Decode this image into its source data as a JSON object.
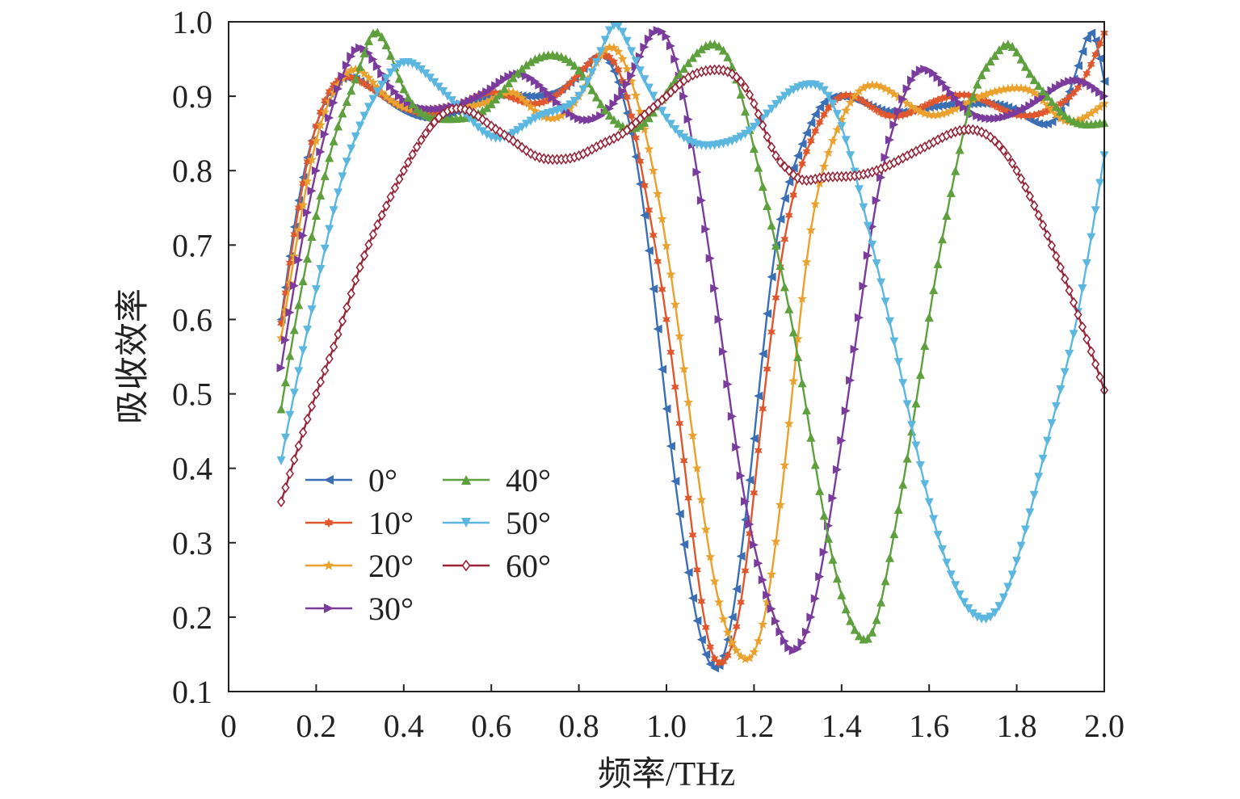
{
  "chart_data": {
    "type": "line",
    "xlabel": "频率/THz",
    "ylabel": "吸收效率",
    "xlim": [
      0,
      2.0
    ],
    "ylim": [
      0.1,
      1.0
    ],
    "xticks": [
      "0",
      "0.2",
      "0.4",
      "0.6",
      "0.8",
      "1.0",
      "1.2",
      "1.4",
      "1.6",
      "1.8",
      "2.0"
    ],
    "yticks": [
      "0.1",
      "0.2",
      "0.3",
      "0.4",
      "0.5",
      "0.6",
      "0.7",
      "0.8",
      "0.9",
      "1.0"
    ],
    "grid": false,
    "legend_position": "lower-left, two columns",
    "series": [
      {
        "name": "0°",
        "color": "#3a6fb5",
        "marker": "triangle-left",
        "points": [
          [
            0.12,
            0.6
          ],
          [
            0.16,
            0.76
          ],
          [
            0.2,
            0.86
          ],
          [
            0.25,
            0.92
          ],
          [
            0.3,
            0.92
          ],
          [
            0.35,
            0.9
          ],
          [
            0.4,
            0.88
          ],
          [
            0.5,
            0.875
          ],
          [
            0.6,
            0.9
          ],
          [
            0.7,
            0.9
          ],
          [
            0.8,
            0.93
          ],
          [
            0.85,
            0.955
          ],
          [
            0.9,
            0.9
          ],
          [
            0.95,
            0.74
          ],
          [
            1.0,
            0.48
          ],
          [
            1.05,
            0.26
          ],
          [
            1.09,
            0.15
          ],
          [
            1.12,
            0.135
          ],
          [
            1.15,
            0.2
          ],
          [
            1.2,
            0.44
          ],
          [
            1.25,
            0.7
          ],
          [
            1.3,
            0.82
          ],
          [
            1.35,
            0.885
          ],
          [
            1.4,
            0.9
          ],
          [
            1.5,
            0.88
          ],
          [
            1.6,
            0.885
          ],
          [
            1.7,
            0.89
          ],
          [
            1.8,
            0.88
          ],
          [
            1.9,
            0.88
          ],
          [
            1.95,
            0.96
          ],
          [
            1.97,
            0.985
          ],
          [
            2.0,
            0.92
          ]
        ]
      },
      {
        "name": "10°",
        "color": "#e0572d",
        "marker": "asterisk",
        "points": [
          [
            0.12,
            0.595
          ],
          [
            0.16,
            0.75
          ],
          [
            0.2,
            0.86
          ],
          [
            0.26,
            0.925
          ],
          [
            0.3,
            0.92
          ],
          [
            0.4,
            0.885
          ],
          [
            0.5,
            0.88
          ],
          [
            0.6,
            0.905
          ],
          [
            0.7,
            0.89
          ],
          [
            0.8,
            0.93
          ],
          [
            0.86,
            0.955
          ],
          [
            0.9,
            0.92
          ],
          [
            0.95,
            0.78
          ],
          [
            1.0,
            0.6
          ],
          [
            1.05,
            0.36
          ],
          [
            1.1,
            0.16
          ],
          [
            1.13,
            0.14
          ],
          [
            1.17,
            0.22
          ],
          [
            1.22,
            0.48
          ],
          [
            1.28,
            0.74
          ],
          [
            1.33,
            0.84
          ],
          [
            1.4,
            0.9
          ],
          [
            1.5,
            0.875
          ],
          [
            1.6,
            0.89
          ],
          [
            1.7,
            0.9
          ],
          [
            1.8,
            0.875
          ],
          [
            1.9,
            0.89
          ],
          [
            1.95,
            0.92
          ],
          [
            2.0,
            0.985
          ]
        ]
      },
      {
        "name": "20°",
        "color": "#eaa12d",
        "marker": "star",
        "points": [
          [
            0.12,
            0.575
          ],
          [
            0.16,
            0.72
          ],
          [
            0.2,
            0.84
          ],
          [
            0.25,
            0.915
          ],
          [
            0.28,
            0.935
          ],
          [
            0.35,
            0.905
          ],
          [
            0.4,
            0.885
          ],
          [
            0.5,
            0.885
          ],
          [
            0.6,
            0.895
          ],
          [
            0.65,
            0.905
          ],
          [
            0.7,
            0.88
          ],
          [
            0.8,
            0.9
          ],
          [
            0.88,
            0.965
          ],
          [
            0.92,
            0.92
          ],
          [
            0.97,
            0.8
          ],
          [
            1.02,
            0.62
          ],
          [
            1.07,
            0.4
          ],
          [
            1.12,
            0.22
          ],
          [
            1.16,
            0.155
          ],
          [
            1.19,
            0.145
          ],
          [
            1.23,
            0.22
          ],
          [
            1.28,
            0.46
          ],
          [
            1.33,
            0.72
          ],
          [
            1.38,
            0.84
          ],
          [
            1.43,
            0.9
          ],
          [
            1.47,
            0.915
          ],
          [
            1.5,
            0.91
          ],
          [
            1.6,
            0.875
          ],
          [
            1.7,
            0.895
          ],
          [
            1.78,
            0.91
          ],
          [
            1.85,
            0.9
          ],
          [
            1.9,
            0.87
          ],
          [
            1.95,
            0.87
          ],
          [
            2.0,
            0.89
          ]
        ]
      },
      {
        "name": "30°",
        "color": "#7a3b9c",
        "marker": "triangle-right",
        "points": [
          [
            0.12,
            0.535
          ],
          [
            0.16,
            0.68
          ],
          [
            0.2,
            0.8
          ],
          [
            0.25,
            0.91
          ],
          [
            0.3,
            0.965
          ],
          [
            0.35,
            0.93
          ],
          [
            0.4,
            0.895
          ],
          [
            0.5,
            0.885
          ],
          [
            0.6,
            0.91
          ],
          [
            0.66,
            0.93
          ],
          [
            0.7,
            0.92
          ],
          [
            0.8,
            0.87
          ],
          [
            0.88,
            0.89
          ],
          [
            0.93,
            0.94
          ],
          [
            0.97,
            0.985
          ],
          [
            1.0,
            0.98
          ],
          [
            1.04,
            0.9
          ],
          [
            1.08,
            0.76
          ],
          [
            1.12,
            0.6
          ],
          [
            1.17,
            0.39
          ],
          [
            1.22,
            0.25
          ],
          [
            1.26,
            0.18
          ],
          [
            1.29,
            0.155
          ],
          [
            1.33,
            0.2
          ],
          [
            1.38,
            0.36
          ],
          [
            1.43,
            0.56
          ],
          [
            1.48,
            0.76
          ],
          [
            1.53,
            0.88
          ],
          [
            1.58,
            0.935
          ],
          [
            1.62,
            0.925
          ],
          [
            1.68,
            0.885
          ],
          [
            1.75,
            0.87
          ],
          [
            1.85,
            0.895
          ],
          [
            1.9,
            0.915
          ],
          [
            1.95,
            0.92
          ],
          [
            2.0,
            0.9
          ]
        ]
      },
      {
        "name": "40°",
        "color": "#5da03d",
        "marker": "triangle-up",
        "points": [
          [
            0.12,
            0.48
          ],
          [
            0.16,
            0.62
          ],
          [
            0.2,
            0.74
          ],
          [
            0.25,
            0.86
          ],
          [
            0.3,
            0.94
          ],
          [
            0.33,
            0.985
          ],
          [
            0.35,
            0.98
          ],
          [
            0.4,
            0.91
          ],
          [
            0.45,
            0.875
          ],
          [
            0.5,
            0.87
          ],
          [
            0.6,
            0.89
          ],
          [
            0.65,
            0.925
          ],
          [
            0.7,
            0.95
          ],
          [
            0.75,
            0.955
          ],
          [
            0.8,
            0.935
          ],
          [
            0.85,
            0.89
          ],
          [
            0.9,
            0.86
          ],
          [
            0.95,
            0.865
          ],
          [
            1.0,
            0.905
          ],
          [
            1.05,
            0.945
          ],
          [
            1.1,
            0.97
          ],
          [
            1.15,
            0.94
          ],
          [
            1.2,
            0.83
          ],
          [
            1.25,
            0.7
          ],
          [
            1.3,
            0.55
          ],
          [
            1.35,
            0.37
          ],
          [
            1.4,
            0.23
          ],
          [
            1.44,
            0.175
          ],
          [
            1.47,
            0.18
          ],
          [
            1.51,
            0.28
          ],
          [
            1.56,
            0.45
          ],
          [
            1.61,
            0.64
          ],
          [
            1.66,
            0.8
          ],
          [
            1.7,
            0.9
          ],
          [
            1.75,
            0.955
          ],
          [
            1.78,
            0.97
          ],
          [
            1.82,
            0.94
          ],
          [
            1.87,
            0.9
          ],
          [
            1.92,
            0.87
          ],
          [
            2.0,
            0.865
          ]
        ]
      },
      {
        "name": "50°",
        "color": "#5bb7e0",
        "marker": "triangle-down",
        "points": [
          [
            0.12,
            0.41
          ],
          [
            0.16,
            0.53
          ],
          [
            0.2,
            0.64
          ],
          [
            0.25,
            0.77
          ],
          [
            0.3,
            0.86
          ],
          [
            0.35,
            0.915
          ],
          [
            0.4,
            0.945
          ],
          [
            0.45,
            0.93
          ],
          [
            0.5,
            0.9
          ],
          [
            0.55,
            0.87
          ],
          [
            0.6,
            0.845
          ],
          [
            0.65,
            0.85
          ],
          [
            0.7,
            0.87
          ],
          [
            0.75,
            0.88
          ],
          [
            0.8,
            0.9
          ],
          [
            0.85,
            0.96
          ],
          [
            0.88,
            0.995
          ],
          [
            0.92,
            0.96
          ],
          [
            0.97,
            0.9
          ],
          [
            1.02,
            0.855
          ],
          [
            1.07,
            0.835
          ],
          [
            1.12,
            0.835
          ],
          [
            1.17,
            0.845
          ],
          [
            1.22,
            0.87
          ],
          [
            1.27,
            0.9
          ],
          [
            1.32,
            0.915
          ],
          [
            1.37,
            0.9
          ],
          [
            1.42,
            0.82
          ],
          [
            1.47,
            0.7
          ],
          [
            1.52,
            0.57
          ],
          [
            1.57,
            0.43
          ],
          [
            1.62,
            0.31
          ],
          [
            1.67,
            0.23
          ],
          [
            1.71,
            0.2
          ],
          [
            1.74,
            0.2
          ],
          [
            1.78,
            0.24
          ],
          [
            1.83,
            0.34
          ],
          [
            1.88,
            0.46
          ],
          [
            1.93,
            0.58
          ],
          [
            1.97,
            0.71
          ],
          [
            2.0,
            0.82
          ]
        ]
      },
      {
        "name": "60°",
        "color": "#962538",
        "marker": "diamond",
        "points": [
          [
            0.12,
            0.355
          ],
          [
            0.16,
            0.43
          ],
          [
            0.2,
            0.5
          ],
          [
            0.25,
            0.58
          ],
          [
            0.3,
            0.67
          ],
          [
            0.35,
            0.74
          ],
          [
            0.4,
            0.8
          ],
          [
            0.45,
            0.85
          ],
          [
            0.5,
            0.88
          ],
          [
            0.55,
            0.88
          ],
          [
            0.6,
            0.86
          ],
          [
            0.65,
            0.84
          ],
          [
            0.7,
            0.82
          ],
          [
            0.75,
            0.815
          ],
          [
            0.8,
            0.82
          ],
          [
            0.85,
            0.835
          ],
          [
            0.9,
            0.85
          ],
          [
            0.95,
            0.875
          ],
          [
            1.0,
            0.9
          ],
          [
            1.05,
            0.925
          ],
          [
            1.1,
            0.935
          ],
          [
            1.15,
            0.93
          ],
          [
            1.2,
            0.89
          ],
          [
            1.25,
            0.82
          ],
          [
            1.28,
            0.8
          ],
          [
            1.3,
            0.79
          ],
          [
            1.35,
            0.79
          ],
          [
            1.4,
            0.792
          ],
          [
            1.45,
            0.795
          ],
          [
            1.5,
            0.805
          ],
          [
            1.55,
            0.82
          ],
          [
            1.6,
            0.835
          ],
          [
            1.65,
            0.85
          ],
          [
            1.7,
            0.855
          ],
          [
            1.75,
            0.84
          ],
          [
            1.8,
            0.8
          ],
          [
            1.85,
            0.74
          ],
          [
            1.9,
            0.67
          ],
          [
            1.95,
            0.59
          ],
          [
            1.98,
            0.54
          ],
          [
            2.0,
            0.505
          ]
        ]
      }
    ]
  }
}
